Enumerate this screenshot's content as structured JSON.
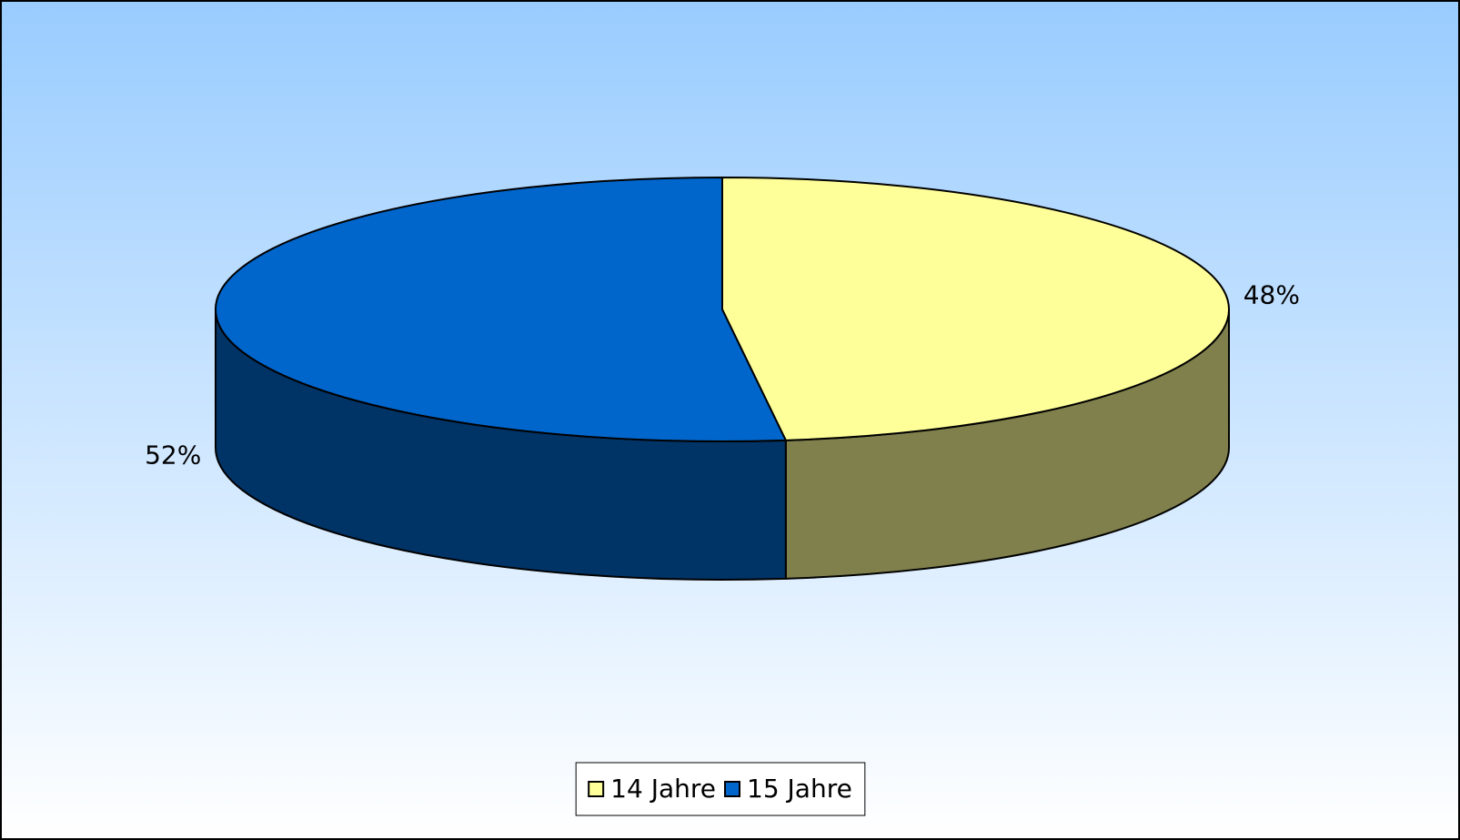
{
  "chart_data": {
    "type": "pie3d",
    "categories": [
      "14 Jahre",
      "15 Jahre"
    ],
    "values": [
      48,
      52
    ],
    "value_labels": [
      "48%",
      "52%"
    ],
    "colors": [
      "#ffff99",
      "#0066cc"
    ],
    "legend": "bottom"
  }
}
